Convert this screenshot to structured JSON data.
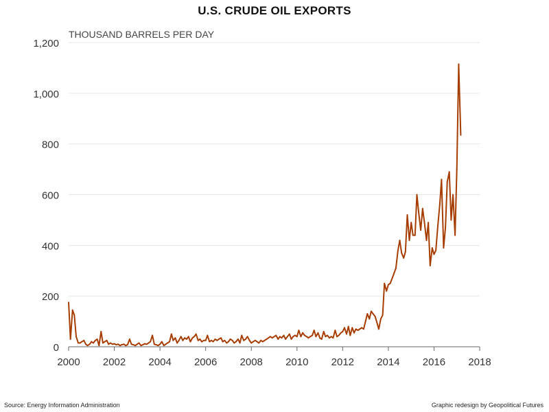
{
  "title": "U.S. CRUDE OIL EXPORTS",
  "source": "Source: Energy Information Administration",
  "credit": "Graphic redesign by Geopolitical Futures",
  "colors": {
    "line": "#a63d00",
    "grid": "#e6e6e6",
    "axis": "#666666"
  },
  "chart_data": {
    "type": "line",
    "title": "U.S. CRUDE OIL EXPORTS",
    "ylabel": "THOUSAND BARRELS PER DAY",
    "xlabel": "",
    "xlim": [
      2000,
      2018
    ],
    "ylim": [
      0,
      1200
    ],
    "grid": true,
    "x_ticks": [
      2000,
      2002,
      2004,
      2006,
      2008,
      2010,
      2012,
      2014,
      2016,
      2018
    ],
    "x_tick_labels": [
      "2000",
      "2002",
      "2004",
      "2006",
      "2008",
      "2010",
      "2012",
      "2014",
      "2016",
      "2018"
    ],
    "y_ticks": [
      0,
      200,
      400,
      600,
      800,
      1000,
      1200
    ],
    "y_tick_labels": [
      "0",
      "200",
      "400",
      "600",
      "800",
      "1,000",
      "1,200"
    ],
    "series": [
      {
        "name": "U.S. crude oil exports",
        "points": [
          [
            2000.0,
            175
          ],
          [
            2000.08,
            30
          ],
          [
            2000.17,
            145
          ],
          [
            2000.25,
            125
          ],
          [
            2000.33,
            40
          ],
          [
            2000.42,
            15
          ],
          [
            2000.5,
            15
          ],
          [
            2000.58,
            20
          ],
          [
            2000.67,
            25
          ],
          [
            2000.75,
            10
          ],
          [
            2000.83,
            5
          ],
          [
            2000.92,
            10
          ],
          [
            2001.0,
            20
          ],
          [
            2001.08,
            15
          ],
          [
            2001.17,
            25
          ],
          [
            2001.25,
            30
          ],
          [
            2001.33,
            5
          ],
          [
            2001.42,
            60
          ],
          [
            2001.5,
            15
          ],
          [
            2001.58,
            20
          ],
          [
            2001.67,
            25
          ],
          [
            2001.75,
            10
          ],
          [
            2001.83,
            15
          ],
          [
            2001.92,
            10
          ],
          [
            2002.0,
            12
          ],
          [
            2002.08,
            8
          ],
          [
            2002.17,
            10
          ],
          [
            2002.25,
            5
          ],
          [
            2002.33,
            8
          ],
          [
            2002.42,
            10
          ],
          [
            2002.5,
            5
          ],
          [
            2002.58,
            8
          ],
          [
            2002.67,
            30
          ],
          [
            2002.75,
            10
          ],
          [
            2002.83,
            8
          ],
          [
            2002.92,
            5
          ],
          [
            2003.0,
            10
          ],
          [
            2003.08,
            15
          ],
          [
            2003.17,
            5
          ],
          [
            2003.25,
            8
          ],
          [
            2003.33,
            12
          ],
          [
            2003.42,
            10
          ],
          [
            2003.5,
            15
          ],
          [
            2003.58,
            20
          ],
          [
            2003.67,
            45
          ],
          [
            2003.75,
            10
          ],
          [
            2003.83,
            8
          ],
          [
            2003.92,
            5
          ],
          [
            2004.0,
            10
          ],
          [
            2004.08,
            20
          ],
          [
            2004.17,
            5
          ],
          [
            2004.25,
            10
          ],
          [
            2004.33,
            15
          ],
          [
            2004.42,
            20
          ],
          [
            2004.5,
            50
          ],
          [
            2004.58,
            25
          ],
          [
            2004.67,
            35
          ],
          [
            2004.75,
            15
          ],
          [
            2004.83,
            25
          ],
          [
            2004.92,
            40
          ],
          [
            2005.0,
            25
          ],
          [
            2005.08,
            35
          ],
          [
            2005.17,
            30
          ],
          [
            2005.25,
            40
          ],
          [
            2005.33,
            20
          ],
          [
            2005.42,
            35
          ],
          [
            2005.5,
            40
          ],
          [
            2005.58,
            50
          ],
          [
            2005.67,
            25
          ],
          [
            2005.75,
            30
          ],
          [
            2005.83,
            20
          ],
          [
            2005.92,
            25
          ],
          [
            2006.0,
            25
          ],
          [
            2006.08,
            45
          ],
          [
            2006.17,
            20
          ],
          [
            2006.25,
            25
          ],
          [
            2006.33,
            20
          ],
          [
            2006.42,
            30
          ],
          [
            2006.5,
            25
          ],
          [
            2006.58,
            30
          ],
          [
            2006.67,
            35
          ],
          [
            2006.75,
            20
          ],
          [
            2006.83,
            25
          ],
          [
            2006.92,
            15
          ],
          [
            2007.0,
            20
          ],
          [
            2007.08,
            30
          ],
          [
            2007.17,
            25
          ],
          [
            2007.25,
            15
          ],
          [
            2007.33,
            20
          ],
          [
            2007.42,
            30
          ],
          [
            2007.5,
            15
          ],
          [
            2007.58,
            45
          ],
          [
            2007.67,
            25
          ],
          [
            2007.75,
            30
          ],
          [
            2007.83,
            40
          ],
          [
            2007.92,
            25
          ],
          [
            2008.0,
            15
          ],
          [
            2008.08,
            20
          ],
          [
            2008.17,
            25
          ],
          [
            2008.25,
            20
          ],
          [
            2008.33,
            15
          ],
          [
            2008.42,
            25
          ],
          [
            2008.5,
            20
          ],
          [
            2008.58,
            25
          ],
          [
            2008.67,
            30
          ],
          [
            2008.75,
            35
          ],
          [
            2008.83,
            40
          ],
          [
            2008.92,
            35
          ],
          [
            2009.0,
            40
          ],
          [
            2009.08,
            45
          ],
          [
            2009.17,
            30
          ],
          [
            2009.25,
            40
          ],
          [
            2009.33,
            35
          ],
          [
            2009.42,
            45
          ],
          [
            2009.5,
            30
          ],
          [
            2009.58,
            40
          ],
          [
            2009.67,
            50
          ],
          [
            2009.75,
            30
          ],
          [
            2009.83,
            40
          ],
          [
            2009.92,
            45
          ],
          [
            2010.0,
            40
          ],
          [
            2010.08,
            65
          ],
          [
            2010.17,
            40
          ],
          [
            2010.25,
            55
          ],
          [
            2010.33,
            45
          ],
          [
            2010.42,
            40
          ],
          [
            2010.5,
            35
          ],
          [
            2010.58,
            40
          ],
          [
            2010.67,
            45
          ],
          [
            2010.75,
            65
          ],
          [
            2010.83,
            40
          ],
          [
            2010.92,
            55
          ],
          [
            2011.0,
            35
          ],
          [
            2011.08,
            30
          ],
          [
            2011.17,
            60
          ],
          [
            2011.25,
            40
          ],
          [
            2011.33,
            45
          ],
          [
            2011.42,
            35
          ],
          [
            2011.5,
            40
          ],
          [
            2011.58,
            35
          ],
          [
            2011.67,
            65
          ],
          [
            2011.75,
            40
          ],
          [
            2011.83,
            45
          ],
          [
            2011.92,
            55
          ],
          [
            2012.0,
            60
          ],
          [
            2012.08,
            75
          ],
          [
            2012.17,
            50
          ],
          [
            2012.25,
            80
          ],
          [
            2012.33,
            45
          ],
          [
            2012.42,
            75
          ],
          [
            2012.5,
            55
          ],
          [
            2012.58,
            70
          ],
          [
            2012.67,
            65
          ],
          [
            2012.75,
            70
          ],
          [
            2012.83,
            75
          ],
          [
            2012.92,
            70
          ],
          [
            2013.0,
            100
          ],
          [
            2013.08,
            130
          ],
          [
            2013.17,
            110
          ],
          [
            2013.25,
            140
          ],
          [
            2013.33,
            130
          ],
          [
            2013.42,
            120
          ],
          [
            2013.5,
            95
          ],
          [
            2013.58,
            70
          ],
          [
            2013.67,
            110
          ],
          [
            2013.75,
            125
          ],
          [
            2013.83,
            250
          ],
          [
            2013.92,
            220
          ],
          [
            2014.0,
            245
          ],
          [
            2014.08,
            250
          ],
          [
            2014.17,
            270
          ],
          [
            2014.25,
            290
          ],
          [
            2014.33,
            310
          ],
          [
            2014.42,
            380
          ],
          [
            2014.5,
            420
          ],
          [
            2014.58,
            370
          ],
          [
            2014.67,
            350
          ],
          [
            2014.75,
            375
          ],
          [
            2014.83,
            520
          ],
          [
            2014.92,
            420
          ],
          [
            2015.0,
            490
          ],
          [
            2015.08,
            440
          ],
          [
            2015.17,
            440
          ],
          [
            2015.25,
            600
          ],
          [
            2015.33,
            530
          ],
          [
            2015.42,
            460
          ],
          [
            2015.5,
            545
          ],
          [
            2015.58,
            490
          ],
          [
            2015.67,
            420
          ],
          [
            2015.75,
            490
          ],
          [
            2015.83,
            320
          ],
          [
            2015.92,
            390
          ],
          [
            2016.0,
            365
          ],
          [
            2016.08,
            380
          ],
          [
            2016.17,
            480
          ],
          [
            2016.25,
            560
          ],
          [
            2016.33,
            660
          ],
          [
            2016.42,
            390
          ],
          [
            2016.5,
            470
          ],
          [
            2016.58,
            650
          ],
          [
            2016.67,
            690
          ],
          [
            2016.75,
            500
          ],
          [
            2016.83,
            600
          ],
          [
            2016.92,
            440
          ],
          [
            2017.0,
            700
          ],
          [
            2017.08,
            1115
          ],
          [
            2017.17,
            835
          ]
        ]
      }
    ]
  }
}
